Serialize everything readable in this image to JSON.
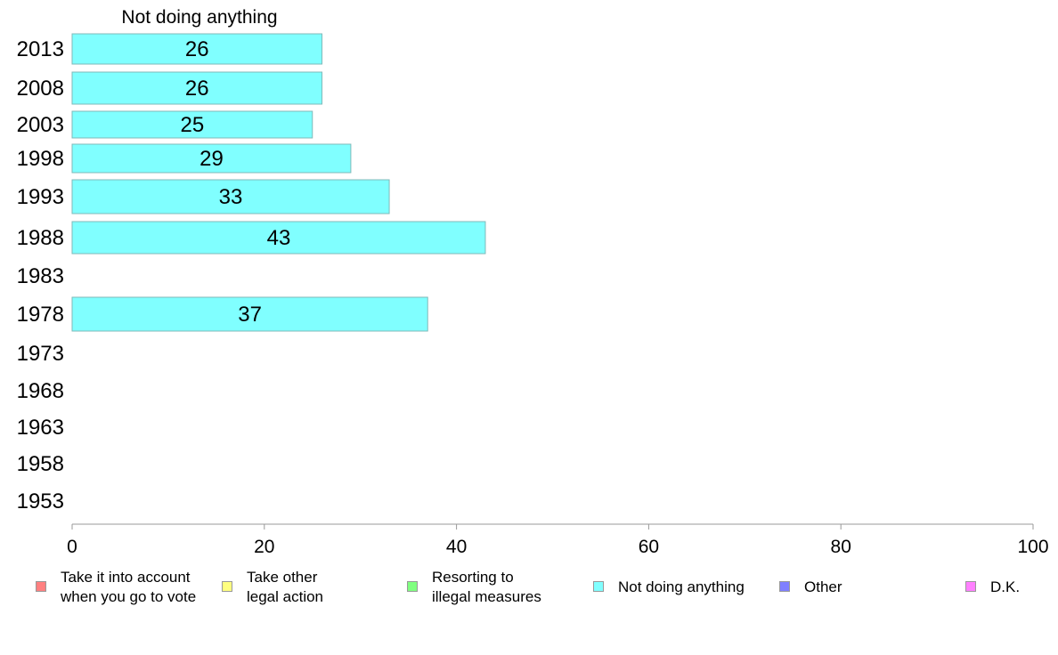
{
  "chart_data": {
    "type": "bar",
    "orientation": "horizontal",
    "panel_title": "Not doing anything",
    "categories": [
      "2013",
      "2008",
      "2003",
      "1998",
      "1993",
      "1988",
      "1983",
      "1978",
      "1973",
      "1968",
      "1963",
      "1958",
      "1953"
    ],
    "series": [
      {
        "name": "Not doing anything",
        "color": "#80ffff",
        "values": [
          26,
          26,
          25,
          29,
          33,
          43,
          null,
          37,
          null,
          null,
          null,
          null,
          null
        ]
      }
    ],
    "xlim": [
      0,
      100
    ],
    "xticks": [
      0,
      20,
      40,
      60,
      80,
      100
    ],
    "grid": false,
    "legend_position": "bottom",
    "legend": [
      {
        "label": "Take it into account\nwhen you go to vote",
        "color": "#ff8080"
      },
      {
        "label": "Take other\nlegal action",
        "color": "#ffff80"
      },
      {
        "label": "Resorting to\nillegal measures",
        "color": "#80ff80"
      },
      {
        "label": "Not doing anything",
        "color": "#80ffff"
      },
      {
        "label": "Other",
        "color": "#8080ff"
      },
      {
        "label": "D.K.",
        "color": "#ff80ff"
      }
    ]
  }
}
